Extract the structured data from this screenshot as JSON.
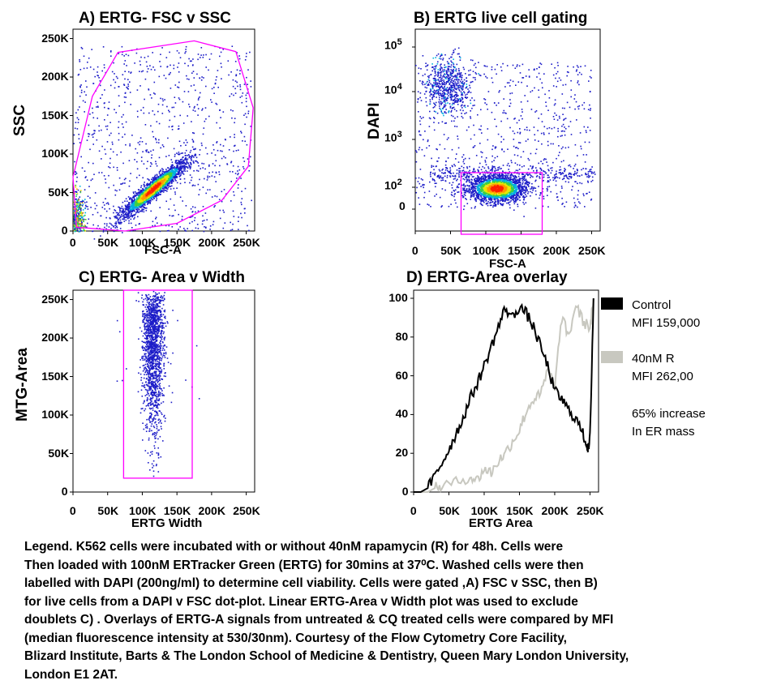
{
  "panels": [
    {
      "title": "A) ERTG- FSC v SSC",
      "xlabel": "FSC-A",
      "ylabel": "SSC",
      "xticks": [
        "0",
        "50K",
        "100K",
        "150K",
        "200K",
        "250K"
      ],
      "yticks": [
        "0",
        "50K",
        "100K",
        "150K",
        "200K",
        "250K"
      ],
      "gate_color": "#ff00ff"
    },
    {
      "title": "B) ERTG live cell gating",
      "xlabel": "FSC-A",
      "ylabel": "DAPI",
      "xticks": [
        "0",
        "50K",
        "100K",
        "150K",
        "200K",
        "250K"
      ],
      "yticks": [
        "0",
        "10",
        "10",
        "10",
        "10"
      ],
      "ytick_exponents": [
        "",
        "2",
        "3",
        "4",
        "5"
      ],
      "gate_color": "#ff00ff"
    },
    {
      "title": "C) ERTG- Area v Width",
      "xlabel": "ERTG Width",
      "ylabel": "MTG-Area",
      "xticks": [
        "0",
        "50K",
        "100K",
        "150K",
        "200K",
        "250K"
      ],
      "yticks": [
        "0",
        "50K",
        "100K",
        "150K",
        "200K",
        "250K"
      ],
      "gate_color": "#ff00ff"
    },
    {
      "title": "D) ERTG-Area overlay",
      "xlabel": "ERTG Area",
      "ylabel": "",
      "xticks": [
        "0",
        "50K",
        "100K",
        "150K",
        "200K",
        "250K"
      ],
      "yticks": [
        "0",
        "20",
        "40",
        "60",
        "80",
        "100"
      ]
    }
  ],
  "legend": {
    "control_label": "Control",
    "control_mfi": "MFI 159,000",
    "control_color": "#000000",
    "treated_label": "40nM R",
    "treated_mfi": "MFI 262,00",
    "treated_color": "#c8c8c0",
    "note_line1": "65% increase",
    "note_line2": "In ER mass"
  },
  "chart_data": [
    {
      "type": "scatter",
      "title": "A) ERTG- FSC v SSC",
      "xlabel": "FSC-A",
      "ylabel": "SSC",
      "xlim": [
        0,
        262144
      ],
      "ylim": [
        0,
        262144
      ],
      "density_clusters": [
        {
          "center": [
            115000,
            55000
          ],
          "spread": [
            18000,
            16000
          ],
          "note": "main dense population"
        },
        {
          "center": [
            5000,
            15000
          ],
          "spread": [
            6000,
            12000
          ],
          "note": "debris near origin"
        }
      ],
      "gate_polygon": [
        [
          0,
          70000
        ],
        [
          28000,
          175000
        ],
        [
          65000,
          232000
        ],
        [
          175000,
          247000
        ],
        [
          235000,
          233000
        ],
        [
          260000,
          160000
        ],
        [
          253000,
          84000
        ],
        [
          215000,
          40000
        ],
        [
          150000,
          10000
        ],
        [
          75000,
          0
        ],
        [
          5000,
          5000
        ]
      ]
    },
    {
      "type": "scatter",
      "title": "B) ERTG live cell gating",
      "xlabel": "FSC-A",
      "ylabel": "DAPI",
      "xlim": [
        0,
        262144
      ],
      "ylog": true,
      "ylim_label": [
        "0",
        "10^5"
      ],
      "density_clusters": [
        {
          "center": [
            115000,
            "~10^2"
          ],
          "note": "live cell population (DAPI low)"
        },
        {
          "center": [
            45000,
            "~10^4"
          ],
          "note": "dead cells (DAPI high)"
        }
      ],
      "gate_rectangle": {
        "x": [
          65000,
          180000
        ],
        "y": [
          "below 0",
          "~2x10^2"
        ]
      }
    },
    {
      "type": "scatter",
      "title": "C) ERTG- Area v Width",
      "xlabel": "ERTG Width",
      "ylabel": "MTG-Area",
      "xlim": [
        0,
        262144
      ],
      "ylim": [
        0,
        262144
      ],
      "density_clusters": [
        {
          "center": [
            115000,
            200000
          ],
          "spread": [
            9000,
            40000
          ],
          "note": "singlets"
        }
      ],
      "gate_rectangle": {
        "x": [
          73000,
          172000
        ],
        "y": [
          18000,
          262144
        ]
      }
    },
    {
      "type": "line",
      "title": "D) ERTG-Area overlay",
      "xlabel": "ERTG Area",
      "ylabel": "",
      "xlim": [
        0,
        262144
      ],
      "ylim": [
        0,
        100
      ],
      "series": [
        {
          "name": "Control",
          "x": [
            0,
            10000,
            20000,
            30000,
            40000,
            50000,
            60000,
            70000,
            80000,
            90000,
            100000,
            110000,
            120000,
            130000,
            140000,
            150000,
            160000,
            170000,
            180000,
            190000,
            200000,
            210000,
            220000,
            230000,
            240000,
            245000,
            248000,
            250000,
            255000
          ],
          "y": [
            0,
            0,
            2,
            8,
            15,
            22,
            30,
            38,
            48,
            56,
            65,
            75,
            85,
            95,
            90,
            96,
            92,
            85,
            75,
            65,
            52,
            48,
            42,
            38,
            30,
            25,
            22,
            28,
            100
          ]
        },
        {
          "name": "40nM R",
          "x": [
            0,
            20000,
            30000,
            40000,
            60000,
            80000,
            90000,
            100000,
            110000,
            120000,
            130000,
            140000,
            150000,
            160000,
            170000,
            180000,
            190000,
            200000,
            210000,
            220000,
            230000,
            240000,
            250000,
            255000
          ],
          "y": [
            0,
            0,
            2,
            3,
            5,
            8,
            6,
            12,
            10,
            16,
            20,
            26,
            32,
            42,
            48,
            50,
            63,
            55,
            90,
            80,
            97,
            88,
            85,
            100
          ]
        }
      ]
    }
  ],
  "caption": [
    "Legend. K562 cells were incubated with or without 40nM rapamycin (R) for 48h. Cells were",
    "Then loaded with 100nM ERTracker Green (ERTG) for 30mins at 37⁰C. Washed cells were then",
    "labelled  with DAPI (200ng/ml) to determine cell viability. Cells were gated ,A) FSC v SSC, then B)",
    "for live cells from a DAPI v FSC dot-plot. Linear ERTG-Area v Width plot  was used to exclude",
    "doublets C) . Overlays of ERTG-A signals from untreated & CQ treated cells were compared by MFI",
    "(median fluorescence intensity at 530/30nm). Courtesy of the Flow Cytometry Core Facility,",
    "Blizard Institute, Barts & The London School of Medicine & Dentistry, Queen Mary London University,",
    "London E1 2AT."
  ]
}
